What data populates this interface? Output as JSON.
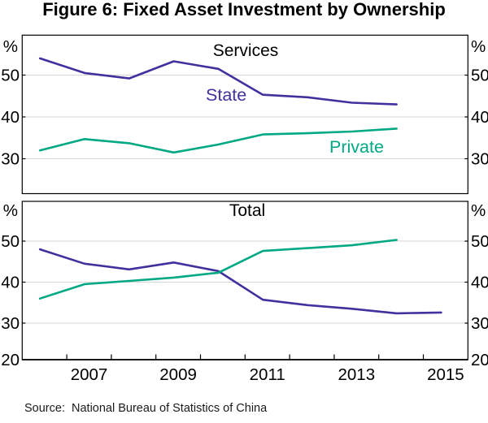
{
  "title": "Figure 6: Fixed Asset Investment by Ownership",
  "misc": {
    "percent": "%"
  },
  "colors": {
    "state": "#43309E",
    "private": "#00A884",
    "grid": "#D5D5D5",
    "axis": "#000000"
  },
  "source": {
    "label": "Source:",
    "text": "National Bureau of Statistics of China"
  },
  "xticks": [
    "2007",
    "2009",
    "2011",
    "2013",
    "2015"
  ],
  "x_range": [
    2006,
    2016
  ],
  "chart_data": [
    {
      "type": "line",
      "panel_title": "Services",
      "ylabel": "%",
      "yticks": [
        50,
        40,
        30
      ],
      "gridlines": [
        50,
        40,
        30
      ],
      "series": [
        {
          "name": "State",
          "color_key": "state",
          "years": [
            2006,
            2007,
            2008,
            2009,
            2010,
            2011,
            2012,
            2013,
            2014
          ],
          "values": [
            54.0,
            50.5,
            49.2,
            53.3,
            51.5,
            45.3,
            44.7,
            43.4,
            43.0
          ]
        },
        {
          "name": "Private",
          "color_key": "private",
          "years": [
            2006,
            2007,
            2008,
            2009,
            2010,
            2011,
            2012,
            2013,
            2014
          ],
          "values": [
            32.0,
            34.7,
            33.7,
            31.5,
            33.4,
            35.8,
            36.1,
            36.5,
            37.2
          ]
        }
      ]
    },
    {
      "type": "line",
      "panel_title": "Total",
      "ylabel": "%",
      "yticks": [
        50,
        40,
        30,
        20
      ],
      "gridlines": [
        50,
        40,
        30
      ],
      "series": [
        {
          "name": "State",
          "color_key": "state",
          "years": [
            2006,
            2007,
            2008,
            2009,
            2010,
            2011,
            2012,
            2013,
            2014,
            2015
          ],
          "values": [
            48.0,
            44.5,
            43.1,
            44.8,
            42.7,
            35.7,
            34.4,
            33.5,
            32.4,
            32.6
          ]
        },
        {
          "name": "Private",
          "color_key": "private",
          "years": [
            2006,
            2007,
            2008,
            2009,
            2010,
            2011,
            2012,
            2013,
            2014
          ],
          "values": [
            36.0,
            39.5,
            40.3,
            41.1,
            42.3,
            47.6,
            48.3,
            49.0,
            50.3
          ]
        }
      ]
    }
  ]
}
